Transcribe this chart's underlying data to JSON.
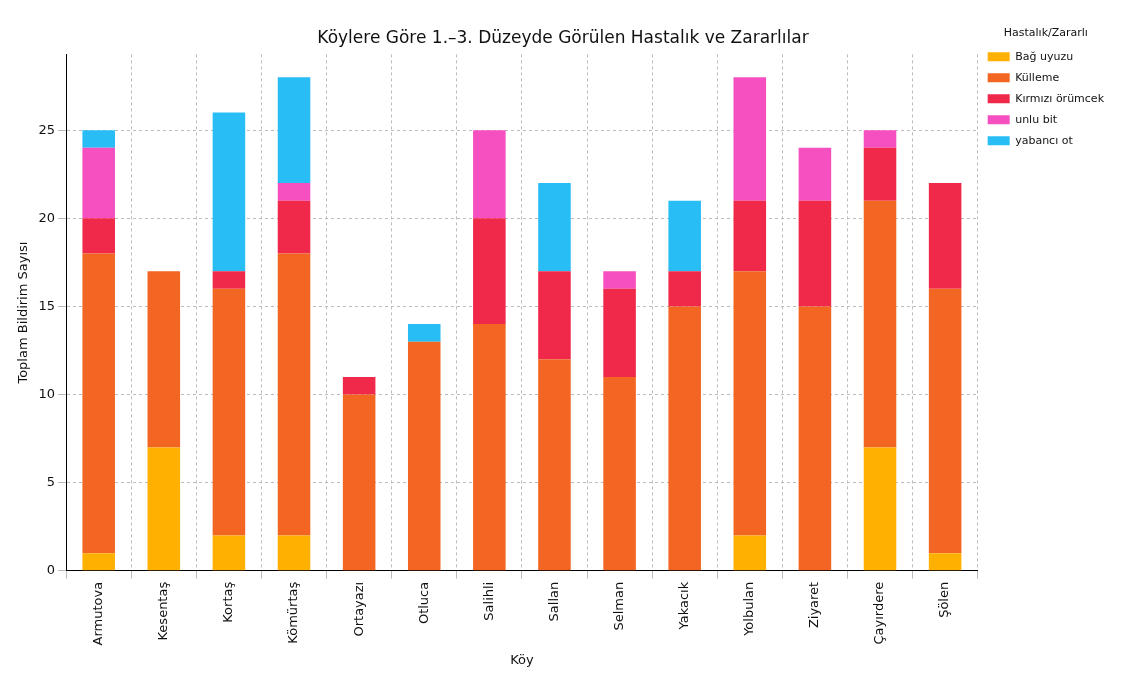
{
  "chart_data": {
    "type": "bar",
    "title": "Köylere Göre 1.–3. Düzeyde Görülen Hastalık ve Zararlılar",
    "xlabel": "Köy",
    "ylabel": "Toplam Bildirim Sayısı",
    "legend_title": "Hastalık/Zararlı",
    "categories": [
      "Armutova",
      "Kesentaş",
      "Kortaş",
      "Kömürtaş",
      "Ortayazı",
      "Otluca",
      "Salihli",
      "Sallan",
      "Selman",
      "Yakacık",
      "Yolbulan",
      "Ziyaret",
      "Çayırdere",
      "Şölen"
    ],
    "series": [
      {
        "name": "Bağ uyuzu",
        "color": "#ffb000",
        "values": [
          1,
          7,
          2,
          2,
          0,
          0,
          0,
          0,
          0,
          0,
          2,
          0,
          7,
          1
        ]
      },
      {
        "name": "Külleme",
        "color": "#f26522",
        "values": [
          17,
          10,
          14,
          16,
          10,
          13,
          14,
          12,
          11,
          15,
          15,
          15,
          14,
          15
        ]
      },
      {
        "name": "Kırmızı örümcek",
        "color": "#f0284a",
        "values": [
          2,
          0,
          1,
          3,
          1,
          0,
          6,
          5,
          5,
          2,
          4,
          6,
          3,
          6
        ]
      },
      {
        "name": "unlu bit",
        "color": "#f54fc0",
        "values": [
          4,
          0,
          0,
          1,
          0,
          0,
          5,
          0,
          1,
          0,
          7,
          3,
          1,
          0
        ]
      },
      {
        "name": "yabancı ot",
        "color": "#29bdf5",
        "values": [
          1,
          0,
          9,
          6,
          0,
          1,
          0,
          5,
          0,
          4,
          0,
          0,
          0,
          0
        ]
      }
    ],
    "stacked": true,
    "ylim": [
      0,
      29.3
    ],
    "yticks": [
      0,
      5,
      10,
      15,
      20,
      25
    ],
    "grid": true,
    "legend": "top right"
  }
}
